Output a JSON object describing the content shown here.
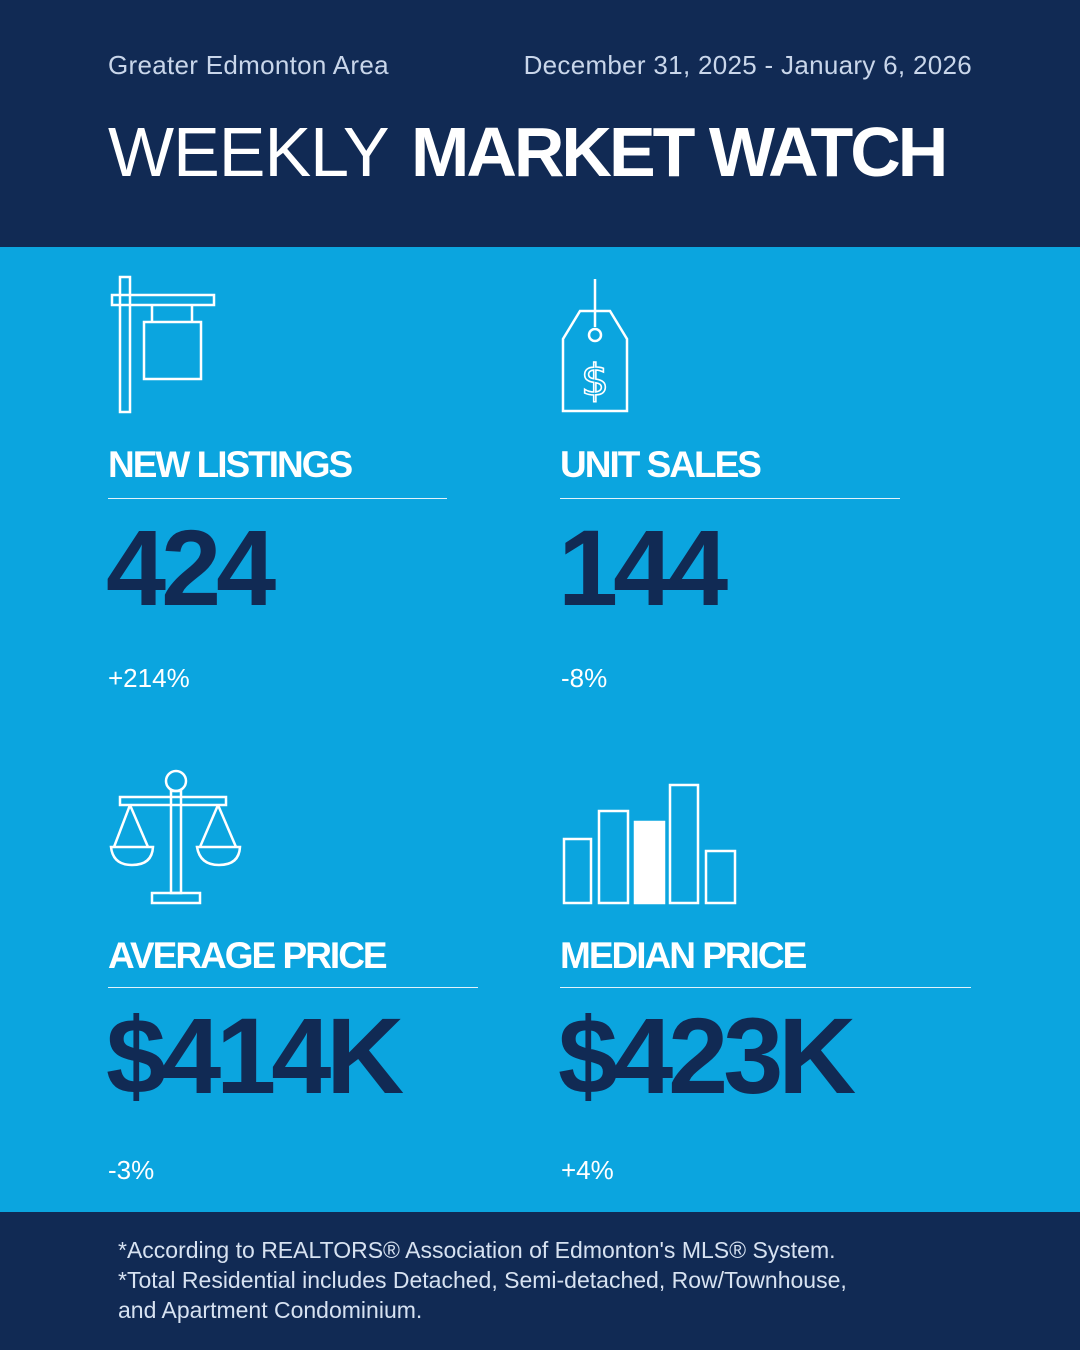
{
  "header": {
    "region": "Greater Edmonton Area",
    "date_range": "December 31, 2025 - January 6, 2026",
    "title_light": "WEEKLY",
    "title_bold": "MARKET WATCH"
  },
  "stats": {
    "new_listings": {
      "label": "NEW LISTINGS",
      "value": "424",
      "change": "+214%",
      "icon": "for-sale-sign-icon"
    },
    "unit_sales": {
      "label": "UNIT SALES",
      "value": "144",
      "change": "-8%",
      "icon": "price-tag-icon"
    },
    "average_price": {
      "label": "AVERAGE PRICE",
      "value": "$414K",
      "change": "-3%",
      "icon": "balance-scale-icon"
    },
    "median_price": {
      "label": "MEDIAN PRICE",
      "value": "$423K",
      "change": "+4%",
      "icon": "bar-chart-icon"
    }
  },
  "footer": {
    "line1": "*According to REALTORS® Association of Edmonton's MLS® System.",
    "line2": "*Total Residential includes Detached, Semi-detached, Row/Townhouse,",
    "line3": "and Apartment Condominium."
  },
  "colors": {
    "navy": "#112a54",
    "blue": "#0ba5df",
    "white": "#ffffff"
  }
}
